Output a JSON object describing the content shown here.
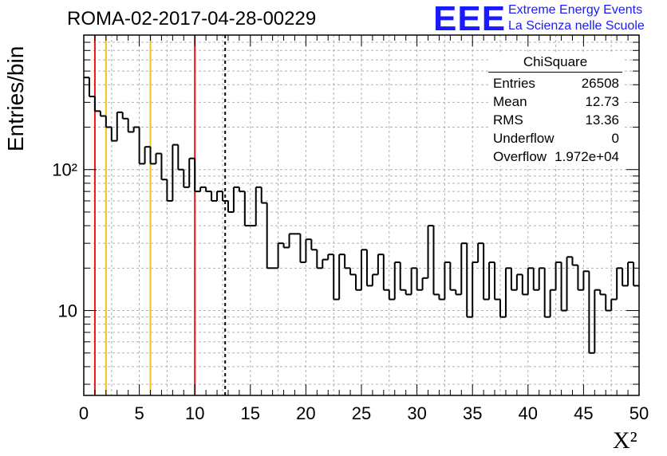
{
  "title": "ROMA-02-2017-04-28-00229",
  "logo": {
    "mark": "EEE",
    "line1": "Extreme Energy Events",
    "line2": "La Scienza nelle Scuole",
    "color": "#1a1aff"
  },
  "stats_box": {
    "title": "ChiSquare",
    "rows": [
      {
        "label": "Entries",
        "value": "26508"
      },
      {
        "label": "Mean",
        "value": "12.73"
      },
      {
        "label": "RMS",
        "value": "13.36"
      },
      {
        "label": "Underflow",
        "value": "0"
      },
      {
        "label": "Overflow",
        "value": "1.972e+04"
      }
    ]
  },
  "chart_data": {
    "type": "histogram",
    "xlabel": "X²",
    "ylabel": "Entries/bin",
    "xlim": [
      0,
      50
    ],
    "ylim": [
      2.5,
      900
    ],
    "y_scale": "log",
    "bin_width": 0.5,
    "grid": true,
    "x_ticks": [
      "0",
      "5",
      "10",
      "15",
      "20",
      "25",
      "30",
      "35",
      "40",
      "45",
      "50"
    ],
    "y_ticks": [
      {
        "value": 10,
        "label": "10"
      },
      {
        "value": 100,
        "label": "10²"
      }
    ],
    "values": [
      450,
      330,
      260,
      240,
      200,
      160,
      255,
      230,
      185,
      200,
      110,
      145,
      110,
      130,
      85,
      60,
      150,
      100,
      75,
      120,
      70,
      75,
      70,
      60,
      70,
      60,
      50,
      75,
      70,
      40,
      40,
      75,
      58,
      20,
      20,
      30,
      28,
      35,
      35,
      22,
      32,
      27,
      20,
      23,
      25,
      12,
      25,
      20,
      18,
      14,
      27,
      15,
      18,
      25,
      14,
      12,
      22,
      14,
      13,
      20,
      14,
      17,
      40,
      13,
      12,
      22,
      14,
      13,
      30,
      9,
      22,
      30,
      12,
      22,
      12,
      9,
      20,
      14,
      18,
      13,
      20,
      14,
      20,
      9,
      14,
      22,
      10,
      24,
      21,
      14,
      19,
      5,
      14,
      13,
      10,
      12,
      20,
      15,
      22,
      15
    ],
    "vertical_lines": [
      {
        "x": 1,
        "color": "#e8161a",
        "style": "solid"
      },
      {
        "x": 2,
        "color": "#f2c21a",
        "style": "solid"
      },
      {
        "x": 6,
        "color": "#f2c21a",
        "style": "solid"
      },
      {
        "x": 10,
        "color": "#e8161a",
        "style": "solid"
      },
      {
        "x": 12.73,
        "color": "#000000",
        "style": "dashed"
      }
    ]
  }
}
